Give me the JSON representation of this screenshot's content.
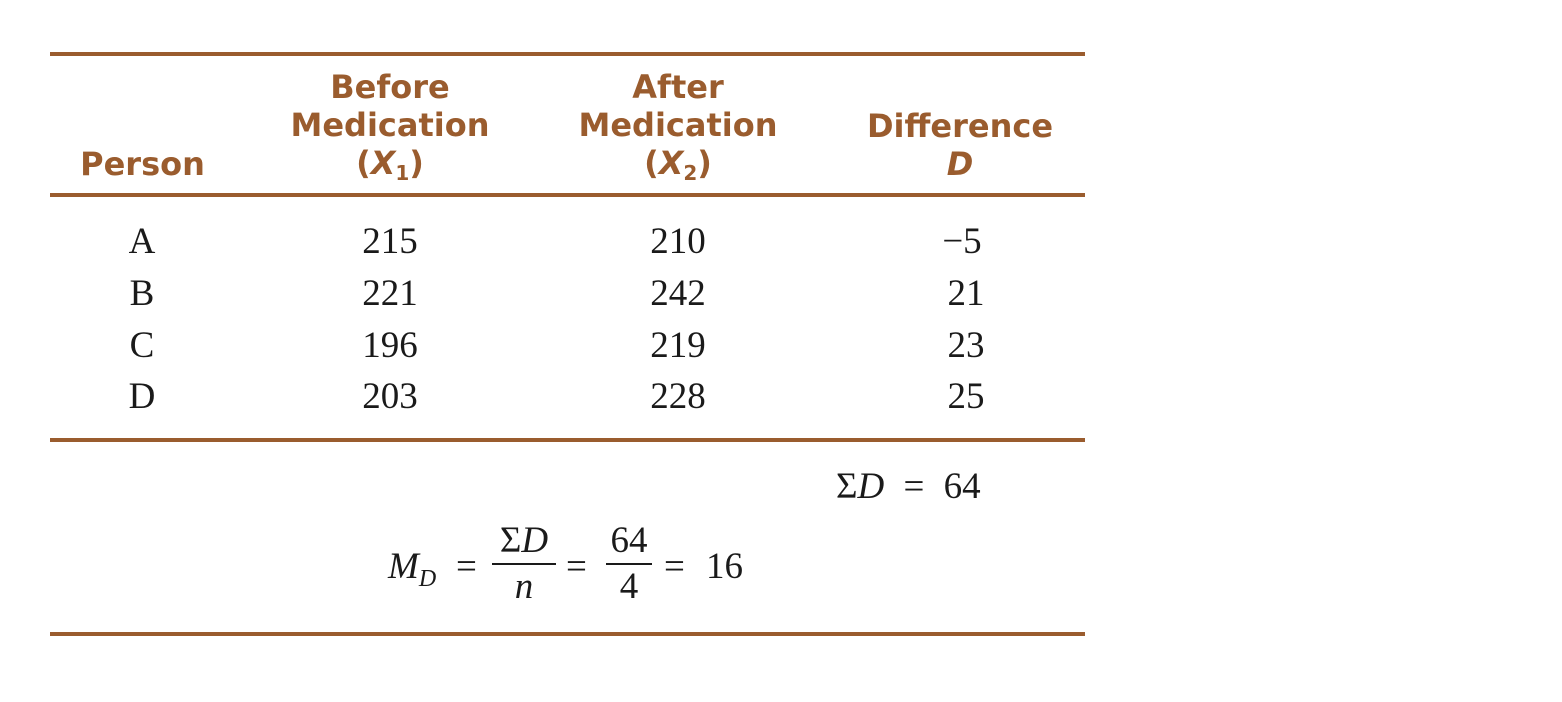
{
  "table": {
    "headers": {
      "person": "Person",
      "before_line1": "Before",
      "before_line2": "Medication",
      "before_var": "X",
      "before_sub": "1",
      "after_line1": "After",
      "after_line2": "Medication",
      "after_var": "X",
      "after_sub": "2",
      "diff_line1": "Difference",
      "diff_var": "D"
    },
    "rows": [
      {
        "person": "A",
        "before": "215",
        "after": "210",
        "difference": "−5"
      },
      {
        "person": "B",
        "before": "221",
        "after": "242",
        "difference": "21"
      },
      {
        "person": "C",
        "before": "196",
        "after": "219",
        "difference": "23"
      },
      {
        "person": "D",
        "before": "203",
        "after": "228",
        "difference": "25"
      }
    ],
    "sum": {
      "symbol": "Σ",
      "var": "D",
      "eq": "=",
      "value": "64"
    },
    "mean": {
      "lhs_var": "M",
      "lhs_sub": "D",
      "eq1": "=",
      "frac1_num_symbol": "Σ",
      "frac1_num_var": "D",
      "frac1_den": "n",
      "eq2": "=",
      "frac2_num": "64",
      "frac2_den": "4",
      "eq3": "=",
      "result": "16"
    },
    "colors": {
      "accent": "#9a5c2e",
      "text": "#1a1a1a"
    }
  }
}
